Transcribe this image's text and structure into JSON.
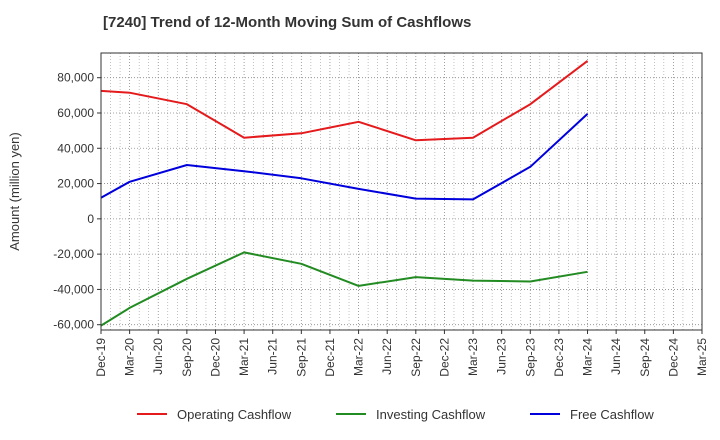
{
  "chart_data": {
    "type": "line",
    "title": "[7240]  Trend of 12-Month Moving Sum of Cashflows",
    "xlabel": "",
    "ylabel": "Amount (million yen)",
    "categories": [
      "Dec-19",
      "Mar-20",
      "Jun-20",
      "Sep-20",
      "Dec-20",
      "Mar-21",
      "Jun-21",
      "Sep-21",
      "Dec-21",
      "Mar-22",
      "Jun-22",
      "Sep-22",
      "Dec-22",
      "Mar-23",
      "Jun-23",
      "Sep-23",
      "Dec-23",
      "Mar-24",
      "Jun-24",
      "Sep-24",
      "Dec-24",
      "Mar-25"
    ],
    "ylim": [
      -63000,
      94000
    ],
    "yticks": [
      -60000,
      -40000,
      -20000,
      0,
      20000,
      40000,
      60000,
      80000
    ],
    "ytick_labels": [
      "-60,000",
      "-40,000",
      "-20,000",
      "0",
      "20,000",
      "40,000",
      "60,000",
      "80,000"
    ],
    "grid": true,
    "legend_position": "bottom",
    "series": [
      {
        "name": "Operating Cashflow",
        "color": "#e41a1c",
        "values": [
          72500,
          71500,
          null,
          65000,
          null,
          46000,
          null,
          48500,
          null,
          55000,
          null,
          44500,
          null,
          46000,
          null,
          65000,
          null,
          89500,
          null,
          null,
          null,
          null
        ]
      },
      {
        "name": "Investing Cashflow",
        "color": "#228b22",
        "values": [
          -60500,
          -50500,
          null,
          -34000,
          null,
          -19000,
          null,
          -25500,
          null,
          -38000,
          null,
          -33000,
          null,
          -35000,
          null,
          -35500,
          null,
          -30000,
          null,
          null,
          null,
          null
        ]
      },
      {
        "name": "Free Cashflow",
        "color": "#0000dd",
        "values": [
          12000,
          21000,
          null,
          30500,
          null,
          27000,
          null,
          23000,
          null,
          17000,
          null,
          11500,
          null,
          11000,
          null,
          29500,
          null,
          59500,
          null,
          null,
          null,
          null
        ]
      }
    ]
  }
}
